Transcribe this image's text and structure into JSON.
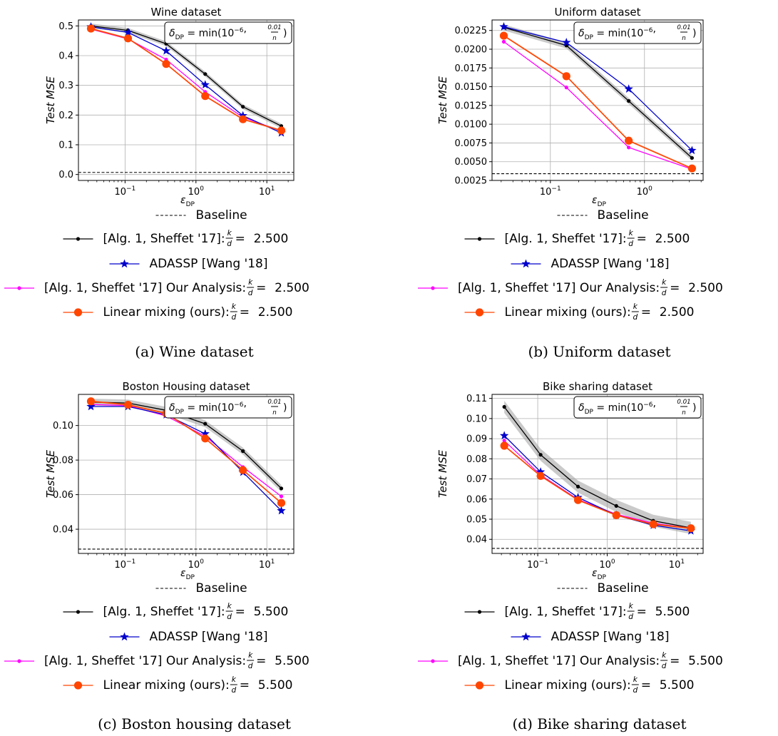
{
  "figure": {
    "annotation": {
      "prefix": "δ",
      "sub": "DP",
      "eq": " = min(10",
      "sup": "−6",
      "sep": ", ",
      "frac_num": "0.01",
      "frac_den": "n",
      "close": ")"
    },
    "x_axis": {
      "symbol": "ε",
      "sub": "DP"
    },
    "legend_labels": {
      "baseline": "Baseline",
      "sheffet": "[Alg. 1, Sheffet '17]: ",
      "adassp": "ADASSP [Wang '18]",
      "ours_analysis": "[Alg. 1, Sheffet '17] Our Analysis: ",
      "mixing": "Linear mixing (ours): "
    },
    "kd_frac": {
      "num": "k",
      "den": "d"
    }
  },
  "colors": {
    "baseline": "#000000",
    "sheffet": "#000000",
    "adassp": "#0000cc",
    "ours_analysis": "#ff00ff",
    "mixing": "#ff4500",
    "band": "#9e9e9e",
    "grid": "#b0b0b0"
  },
  "chart_data": [
    {
      "type": "line",
      "title": "Wine dataset",
      "caption": "(a) Wine dataset",
      "ylabel": "Test MSE",
      "xlabel": "ε_DP",
      "xscale": "log",
      "xlim": [
        0.022,
        24
      ],
      "ylim": [
        -0.02,
        0.52
      ],
      "yticks": [
        "0.0",
        "0.1",
        "0.2",
        "0.3",
        "0.4",
        "0.5"
      ],
      "xticks": [
        "10^-1",
        "10^0",
        "10^1"
      ],
      "baseline": 0.007,
      "kd": "2.500",
      "grid": true,
      "legend_position": "below",
      "x": [
        0.033,
        0.11,
        0.38,
        1.35,
        4.6,
        16
      ],
      "series": [
        {
          "key": "sheffet",
          "name": "[Alg. 1, Sheffet '17]",
          "values": [
            0.5,
            0.485,
            0.44,
            0.338,
            0.228,
            0.163
          ],
          "band": 0.008
        },
        {
          "key": "adassp",
          "name": "ADASSP [Wang '18]",
          "values": [
            0.497,
            0.478,
            0.416,
            0.302,
            0.198,
            0.14
          ]
        },
        {
          "key": "ours_analysis",
          "name": "[Alg. 1, Sheffet '17] Our Analysis",
          "values": [
            0.489,
            0.456,
            0.387,
            0.278,
            0.193,
            0.146
          ]
        },
        {
          "key": "mixing",
          "name": "Linear mixing (ours)",
          "values": [
            0.491,
            0.458,
            0.372,
            0.264,
            0.186,
            0.148
          ]
        }
      ]
    },
    {
      "type": "line",
      "title": "Uniform dataset",
      "caption": "(b) Uniform dataset",
      "ylabel": "Test MSE",
      "xlabel": "ε_DP",
      "xscale": "log",
      "xlim": [
        0.024,
        4.2
      ],
      "ylim": [
        0.0025,
        0.0239
      ],
      "yticks": [
        "0.0025",
        "0.0050",
        "0.0075",
        "0.0100",
        "0.0125",
        "0.0150",
        "0.0175",
        "0.0200",
        "0.0225"
      ],
      "xticks": [
        "10^-1",
        "10^0"
      ],
      "baseline": 0.0034,
      "kd": "2.500",
      "grid": true,
      "legend_position": "below",
      "x": [
        0.032,
        0.148,
        0.68,
        3.2
      ],
      "series": [
        {
          "key": "sheffet",
          "name": "[Alg. 1, Sheffet '17]",
          "values": [
            0.0229,
            0.0205,
            0.0131,
            0.0055
          ],
          "band": 0.0004
        },
        {
          "key": "adassp",
          "name": "ADASSP [Wang '18]",
          "values": [
            0.023,
            0.0209,
            0.0147,
            0.0065
          ]
        },
        {
          "key": "ours_analysis",
          "name": "[Alg. 1, Sheffet '17] Our Analysis",
          "values": [
            0.021,
            0.0149,
            0.0069,
            0.004
          ]
        },
        {
          "key": "mixing",
          "name": "Linear mixing (ours)",
          "values": [
            0.0218,
            0.0164,
            0.0078,
            0.0041
          ]
        }
      ]
    },
    {
      "type": "line",
      "title": "Boston Housing dataset",
      "caption": "(c) Boston housing dataset",
      "ylabel": "Test MSE",
      "xlabel": "ε_DP",
      "xscale": "log",
      "xlim": [
        0.022,
        24
      ],
      "ylim": [
        0.026,
        0.118
      ],
      "yticks": [
        "0.04",
        "0.06",
        "0.08",
        "0.10"
      ],
      "xticks": [
        "10^-1",
        "10^0",
        "10^1"
      ],
      "baseline": 0.0285,
      "kd": "5.500",
      "grid": true,
      "legend_position": "below",
      "x": [
        0.033,
        0.11,
        0.38,
        1.35,
        4.6,
        16
      ],
      "series": [
        {
          "key": "sheffet",
          "name": "[Alg. 1, Sheffet '17]",
          "values": [
            0.1135,
            0.113,
            0.1088,
            0.101,
            0.0852,
            0.0636
          ],
          "band": 0.002
        },
        {
          "key": "adassp",
          "name": "ADASSP [Wang '18]",
          "values": [
            0.111,
            0.111,
            0.1062,
            0.0952,
            0.073,
            0.0507
          ]
        },
        {
          "key": "ours_analysis",
          "name": "[Alg. 1, Sheffet '17] Our Analysis",
          "values": [
            0.1122,
            0.1115,
            0.1055,
            0.0938,
            0.076,
            0.059
          ]
        },
        {
          "key": "mixing",
          "name": "Linear mixing (ours)",
          "values": [
            0.114,
            0.112,
            0.107,
            0.0925,
            0.0742,
            0.0552
          ]
        }
      ]
    },
    {
      "type": "line",
      "title": "Bike sharing dataset",
      "caption": "(d) Bike sharing dataset",
      "ylabel": "Test MSE",
      "xlabel": "ε_DP",
      "xscale": "log",
      "xlim": [
        0.022,
        24
      ],
      "ylim": [
        0.033,
        0.112
      ],
      "yticks": [
        "0.04",
        "0.05",
        "0.06",
        "0.07",
        "0.08",
        "0.09",
        "0.10",
        "0.11"
      ],
      "xticks": [
        "10^-1",
        "10^0",
        "10^1"
      ],
      "baseline": 0.0355,
      "kd": "5.500",
      "grid": true,
      "legend_position": "below",
      "x": [
        0.033,
        0.11,
        0.38,
        1.35,
        4.6,
        16
      ],
      "series": [
        {
          "key": "sheffet",
          "name": "[Alg. 1, Sheffet '17]",
          "values": [
            0.1058,
            0.082,
            0.0662,
            0.0566,
            0.0492,
            0.0457
          ],
          "band": 0.003
        },
        {
          "key": "adassp",
          "name": "ADASSP [Wang '18]",
          "values": [
            0.0915,
            0.0735,
            0.0608,
            0.052,
            0.047,
            0.0442
          ]
        },
        {
          "key": "ours_analysis",
          "name": "[Alg. 1, Sheffet '17] Our Analysis",
          "values": [
            0.089,
            0.072,
            0.0598,
            0.0525,
            0.048,
            0.0455
          ]
        },
        {
          "key": "mixing",
          "name": "Linear mixing (ours)",
          "values": [
            0.0865,
            0.0715,
            0.0595,
            0.052,
            0.0475,
            0.0455
          ]
        }
      ]
    }
  ]
}
